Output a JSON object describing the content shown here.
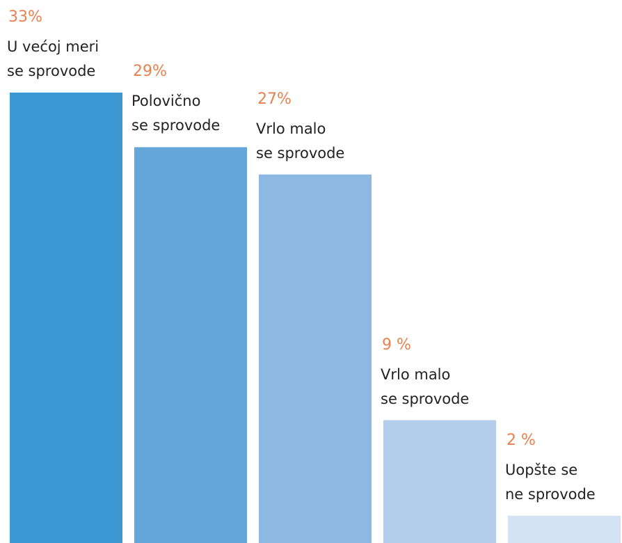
{
  "chart_data": {
    "type": "bar",
    "categories": [
      "U većoj meri\nse sprovode",
      "Polovično\nse sprovode",
      "Vrlo  malo\nse sprovode",
      "Vrlo  malo\nse sprovode",
      "Uopšte se\nne sprovode"
    ],
    "values": [
      33,
      29,
      27,
      9,
      2
    ],
    "value_labels": [
      "33%",
      "29%",
      "27%",
      "9 %",
      "2 %"
    ],
    "colors": [
      "#3d98d3",
      "#64a6da",
      "#8db8e2",
      "#b3cdea",
      "#d5e2f3"
    ],
    "ylim": [
      0,
      33
    ]
  }
}
